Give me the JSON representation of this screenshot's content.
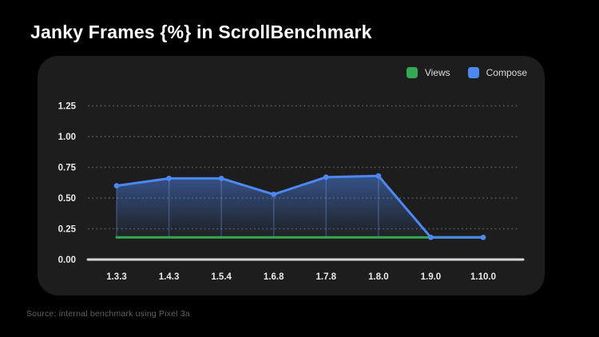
{
  "page": {
    "title": "Janky Frames {%} in ScrollBenchmark",
    "source_note": "Source: internal benchmark using Pixel 3a"
  },
  "legend": [
    {
      "label": "Views",
      "color": "#34a853"
    },
    {
      "label": "Compose",
      "color": "#4d87f0"
    }
  ],
  "chart_data": {
    "type": "line",
    "title": "Janky Frames {%} in ScrollBenchmark",
    "categories": [
      "1.3.3",
      "1.4.3",
      "1.5.4",
      "1.6.8",
      "1.7.8",
      "1.8.0",
      "1.9.0",
      "1.10.0"
    ],
    "series": [
      {
        "name": "Views",
        "color": "#34a853",
        "values": [
          0.18,
          0.18,
          0.18,
          0.18,
          0.18,
          0.18,
          0.18,
          0.18
        ],
        "area": false,
        "markers": false
      },
      {
        "name": "Compose",
        "color": "#4d87f0",
        "values": [
          0.6,
          0.66,
          0.66,
          0.53,
          0.67,
          0.68,
          0.18,
          0.18
        ],
        "area": true,
        "markers": true
      }
    ],
    "ytick_labels": [
      "0.00",
      "0.25",
      "0.50",
      "0.75",
      "1.00",
      "1.25"
    ],
    "ylim": [
      0,
      1.375
    ],
    "xlabel": "",
    "ylabel": "",
    "grid": "dotted-horizontal",
    "legend_position": "top-right"
  },
  "colors": {
    "background": "#000000",
    "card": "#1d1d1d",
    "title_text": "#ffffff",
    "tick_label": "#e8eaed",
    "gridline": "#55585c",
    "axis_line": "#d5d7da",
    "views_green": "#34a853",
    "compose_blue": "#4d87f0",
    "dropline": "rgba(120,162,245,0.32)",
    "area_top": "rgba(77,135,242,0.50)",
    "area_bottom": "rgba(77,135,242,0.03)",
    "source_text": "#5f6368"
  }
}
